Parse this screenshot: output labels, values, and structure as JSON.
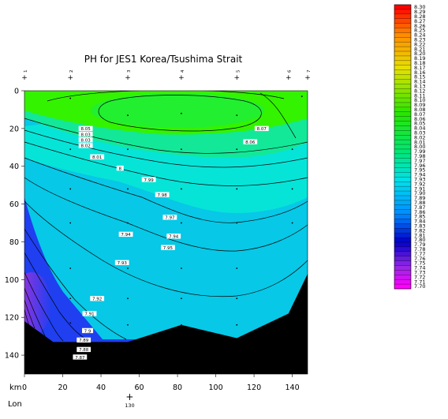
{
  "chart_data": {
    "type": "heatmap",
    "title": "PH for JES1 Korea/Tsushima Strait",
    "x_axis_unit": "km",
    "x_ticks": [
      0,
      20,
      40,
      60,
      80,
      100,
      120,
      140
    ],
    "xlim": [
      0,
      148
    ],
    "y_ticks": [
      0,
      20,
      40,
      60,
      80,
      100,
      120,
      140
    ],
    "ylim": [
      0,
      150
    ],
    "lon_label": "Lon",
    "lon_ticks": [
      {
        "label": "130",
        "km": 55
      }
    ],
    "stations": [
      {
        "label": "1",
        "km": 0
      },
      {
        "label": "2",
        "km": 24
      },
      {
        "label": "3",
        "km": 54
      },
      {
        "label": "4",
        "km": 82
      },
      {
        "label": "5",
        "km": 111
      },
      {
        "label": "6",
        "km": 138
      },
      {
        "label": "7",
        "km": 148
      }
    ],
    "contour_labels": [
      {
        "text": "8.05",
        "km": 32,
        "depth": 20
      },
      {
        "text": "8.03",
        "km": 32,
        "depth": 23
      },
      {
        "text": "8.03",
        "km": 32,
        "depth": 26
      },
      {
        "text": "8.02",
        "km": 32,
        "depth": 29
      },
      {
        "text": "8.01",
        "km": 38,
        "depth": 35
      },
      {
        "text": "8",
        "km": 50,
        "depth": 41
      },
      {
        "text": "7.99",
        "km": 65,
        "depth": 47
      },
      {
        "text": "7.98",
        "km": 72,
        "depth": 55
      },
      {
        "text": "7.97",
        "km": 76,
        "depth": 67
      },
      {
        "text": "7.94",
        "km": 53,
        "depth": 76
      },
      {
        "text": "7.94",
        "km": 78,
        "depth": 77
      },
      {
        "text": "7.95",
        "km": 75,
        "depth": 83
      },
      {
        "text": "7.93",
        "km": 51,
        "depth": 91
      },
      {
        "text": "7.92",
        "km": 38,
        "depth": 110
      },
      {
        "text": "7.91",
        "km": 34,
        "depth": 118
      },
      {
        "text": "7.9",
        "km": 33,
        "depth": 127
      },
      {
        "text": "7.89",
        "km": 31,
        "depth": 132
      },
      {
        "text": "7.88",
        "km": 31,
        "depth": 137
      },
      {
        "text": "7.87",
        "km": 29,
        "depth": 141
      },
      {
        "text": "8.07",
        "km": 124,
        "depth": 20
      },
      {
        "text": "8.06",
        "km": 118,
        "depth": 27
      }
    ],
    "sample_points": [
      [
        24,
        4
      ],
      [
        54,
        13
      ],
      [
        82,
        12
      ],
      [
        111,
        13
      ],
      [
        145,
        3
      ],
      [
        24,
        31
      ],
      [
        54,
        31
      ],
      [
        82,
        31
      ],
      [
        111,
        31
      ],
      [
        140,
        31
      ],
      [
        24,
        52
      ],
      [
        54,
        52
      ],
      [
        82,
        52
      ],
      [
        111,
        52
      ],
      [
        140,
        52
      ],
      [
        24,
        70
      ],
      [
        54,
        70
      ],
      [
        82,
        70
      ],
      [
        111,
        70
      ],
      [
        140,
        70
      ],
      [
        24,
        94
      ],
      [
        54,
        94
      ],
      [
        82,
        94
      ],
      [
        111,
        94
      ],
      [
        24,
        110
      ],
      [
        54,
        110
      ],
      [
        82,
        110
      ],
      [
        111,
        110
      ],
      [
        24,
        123
      ],
      [
        54,
        124
      ],
      [
        82,
        124
      ],
      [
        111,
        124
      ]
    ],
    "bottom_profile": [
      [
        0,
        122
      ],
      [
        15,
        133
      ],
      [
        54,
        133
      ],
      [
        82,
        124
      ],
      [
        111,
        131
      ],
      [
        138,
        118
      ],
      [
        148,
        97
      ]
    ],
    "colorbar": {
      "min": 7.7,
      "max": 8.3,
      "labels": [
        "8.30",
        "8.29",
        "8.28",
        "8.27",
        "8.26",
        "8.25",
        "8.24",
        "8.23",
        "8.22",
        "8.21",
        "8.20",
        "8.19",
        "8.18",
        "8.17",
        "8.16",
        "8.15",
        "8.14",
        "8.13",
        "8.12",
        "8.11",
        "8.10",
        "8.09",
        "8.08",
        "8.07",
        "8.06",
        "8.05",
        "8.04",
        "8.03",
        "8.02",
        "8.01",
        "8.00",
        "7.99",
        "7.98",
        "7.97",
        "7.96",
        "7.95",
        "7.94",
        "7.93",
        "7.92",
        "7.91",
        "7.90",
        "7.89",
        "7.88",
        "7.87",
        "7.86",
        "7.85",
        "7.84",
        "7.83",
        "7.82",
        "7.81",
        "7.80",
        "7.79",
        "7.78",
        "7.77",
        "7.76",
        "7.75",
        "7.74",
        "7.73",
        "7.72",
        "7.71",
        "7.70"
      ]
    }
  }
}
